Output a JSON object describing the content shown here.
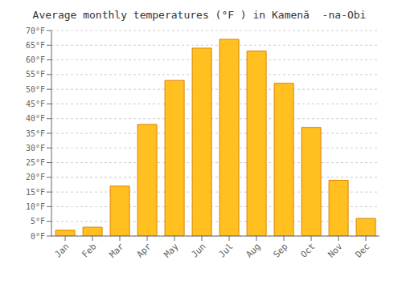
{
  "chart_data": {
    "type": "bar",
    "title": "Average monthly temperatures (°F ) in Kamenă  -na-Obi",
    "categories": [
      "Jan",
      "Feb",
      "Mar",
      "Apr",
      "May",
      "Jun",
      "Jul",
      "Aug",
      "Sep",
      "Oct",
      "Nov",
      "Dec"
    ],
    "values": [
      2,
      3,
      17,
      38,
      53,
      64,
      67,
      63,
      52,
      37,
      19,
      6
    ],
    "color": "#FFC020",
    "ylim": [
      0,
      70
    ],
    "yticks": [
      {
        "value": 0,
        "label": "0°F"
      },
      {
        "value": 5,
        "label": "5°F"
      },
      {
        "value": 10,
        "label": "10°F"
      },
      {
        "value": 15,
        "label": "15°F"
      },
      {
        "value": 20,
        "label": "20°F"
      },
      {
        "value": 25,
        "label": "25°F"
      },
      {
        "value": 30,
        "label": "30°F"
      },
      {
        "value": 35,
        "label": "35°F"
      },
      {
        "value": 40,
        "label": "40°F"
      },
      {
        "value": 45,
        "label": "45°F"
      },
      {
        "value": 50,
        "label": "50°F"
      },
      {
        "value": 55,
        "label": "55°F"
      },
      {
        "value": 60,
        "label": "60°F"
      },
      {
        "value": 65,
        "label": "65°F"
      },
      {
        "value": 70,
        "label": "70°F"
      }
    ],
    "grid": true
  }
}
